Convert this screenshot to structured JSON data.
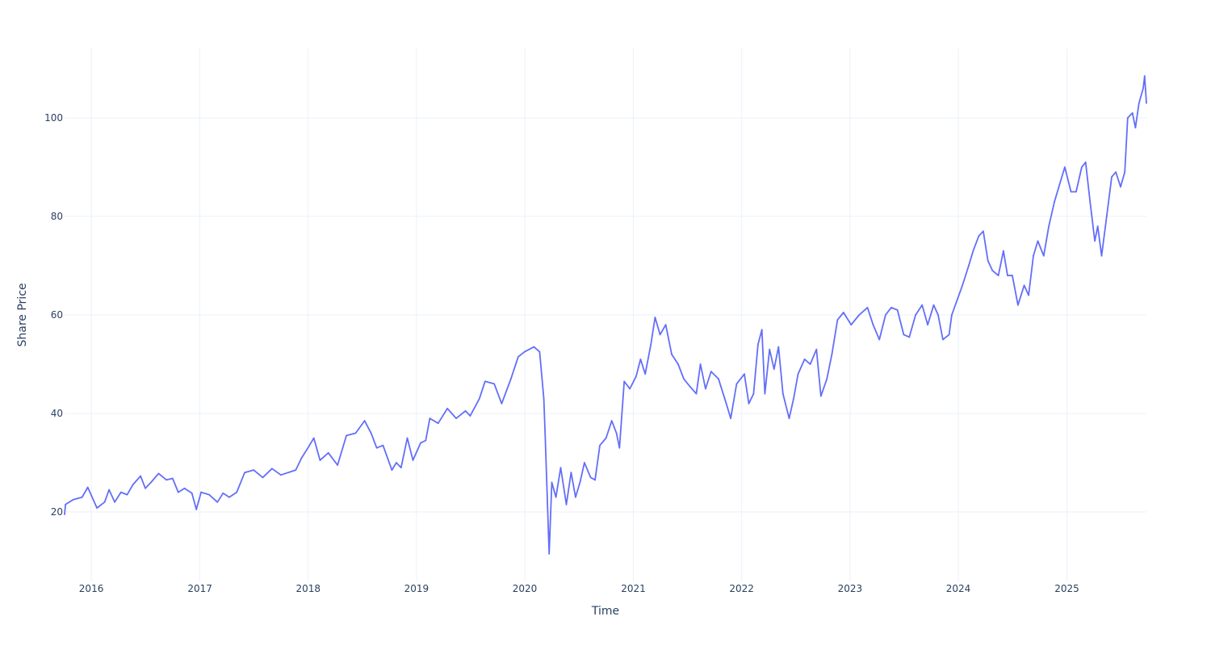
{
  "chart_data": {
    "type": "line",
    "title": "",
    "xlabel": "Time",
    "ylabel": "Share Price",
    "xlim": [
      "2015-10-03",
      "2025-09-26"
    ],
    "ylim": [
      5.9,
      114.1
    ],
    "grid": true,
    "legend": "none",
    "x_ticks": [
      "2016",
      "2017",
      "2018",
      "2019",
      "2020",
      "2021",
      "2022",
      "2023",
      "2024",
      "2025"
    ],
    "y_ticks": [
      "20",
      "40",
      "60",
      "80",
      "100"
    ],
    "colors": {
      "line": "#636efa",
      "grid": "#ebf0f8",
      "text": "#2a3f5f"
    },
    "series": [
      {
        "name": "Share Price",
        "points": [
          [
            "2015-10-03",
            19.5
          ],
          [
            "2015-10-06",
            21.5
          ],
          [
            "2015-11-01",
            22.5
          ],
          [
            "2015-12-01",
            23
          ],
          [
            "2015-12-20",
            25
          ],
          [
            "2016-01-20",
            20.8
          ],
          [
            "2016-02-15",
            22
          ],
          [
            "2016-03-01",
            24.5
          ],
          [
            "2016-03-20",
            22
          ],
          [
            "2016-04-10",
            24
          ],
          [
            "2016-05-01",
            23.5
          ],
          [
            "2016-05-20",
            25.5
          ],
          [
            "2016-06-15",
            27.3
          ],
          [
            "2016-07-01",
            24.8
          ],
          [
            "2016-07-20",
            26
          ],
          [
            "2016-08-15",
            27.8
          ],
          [
            "2016-09-10",
            26.5
          ],
          [
            "2016-10-01",
            26.8
          ],
          [
            "2016-10-20",
            24
          ],
          [
            "2016-11-10",
            24.8
          ],
          [
            "2016-12-05",
            23.8
          ],
          [
            "2016-12-20",
            20.5
          ],
          [
            "2017-01-05",
            24
          ],
          [
            "2017-02-01",
            23.5
          ],
          [
            "2017-03-01",
            22
          ],
          [
            "2017-03-20",
            23.8
          ],
          [
            "2017-04-10",
            23
          ],
          [
            "2017-05-05",
            24
          ],
          [
            "2017-06-01",
            28
          ],
          [
            "2017-07-01",
            28.5
          ],
          [
            "2017-08-01",
            27
          ],
          [
            "2017-09-01",
            28.8
          ],
          [
            "2017-10-01",
            27.5
          ],
          [
            "2017-11-20",
            28.5
          ],
          [
            "2017-12-10",
            31
          ],
          [
            "2017-12-31",
            33
          ],
          [
            "2018-01-20",
            35
          ],
          [
            "2018-02-10",
            30.5
          ],
          [
            "2018-03-10",
            32
          ],
          [
            "2018-04-10",
            29.5
          ],
          [
            "2018-05-10",
            35.5
          ],
          [
            "2018-06-10",
            36
          ],
          [
            "2018-07-10",
            38.5
          ],
          [
            "2018-08-01",
            36
          ],
          [
            "2018-08-20",
            33
          ],
          [
            "2018-09-10",
            33.5
          ],
          [
            "2018-10-10",
            28.5
          ],
          [
            "2018-10-25",
            30
          ],
          [
            "2018-11-10",
            29
          ],
          [
            "2018-12-01",
            35
          ],
          [
            "2018-12-20",
            30.5
          ],
          [
            "2019-01-15",
            34
          ],
          [
            "2019-02-01",
            34.5
          ],
          [
            "2019-02-15",
            39
          ],
          [
            "2019-03-15",
            38
          ],
          [
            "2019-04-15",
            41
          ],
          [
            "2019-05-15",
            39
          ],
          [
            "2019-06-15",
            40.5
          ],
          [
            "2019-07-01",
            39.5
          ],
          [
            "2019-08-01",
            43
          ],
          [
            "2019-08-20",
            46.5
          ],
          [
            "2019-09-20",
            46
          ],
          [
            "2019-10-15",
            42
          ],
          [
            "2019-11-15",
            47
          ],
          [
            "2019-12-10",
            51.5
          ],
          [
            "2019-12-31",
            52.5
          ],
          [
            "2020-02-01",
            53.5
          ],
          [
            "2020-02-20",
            52.5
          ],
          [
            "2020-03-05",
            43
          ],
          [
            "2020-03-10",
            35
          ],
          [
            "2020-03-23",
            11.5
          ],
          [
            "2020-04-01",
            26
          ],
          [
            "2020-04-15",
            23
          ],
          [
            "2020-05-01",
            29
          ],
          [
            "2020-05-20",
            21.5
          ],
          [
            "2020-06-05",
            28
          ],
          [
            "2020-06-20",
            23
          ],
          [
            "2020-07-05",
            26
          ],
          [
            "2020-07-20",
            30
          ],
          [
            "2020-08-10",
            27
          ],
          [
            "2020-08-25",
            26.5
          ],
          [
            "2020-09-10",
            33.5
          ],
          [
            "2020-10-01",
            35
          ],
          [
            "2020-10-20",
            38.5
          ],
          [
            "2020-11-05",
            36
          ],
          [
            "2020-11-15",
            33
          ],
          [
            "2020-12-01",
            46.5
          ],
          [
            "2020-12-20",
            45
          ],
          [
            "2021-01-10",
            47.5
          ],
          [
            "2021-01-25",
            51
          ],
          [
            "2021-02-10",
            48
          ],
          [
            "2021-03-01",
            54
          ],
          [
            "2021-03-15",
            59.5
          ],
          [
            "2021-04-01",
            56
          ],
          [
            "2021-04-20",
            58
          ],
          [
            "2021-05-10",
            52
          ],
          [
            "2021-06-01",
            50
          ],
          [
            "2021-06-20",
            47
          ],
          [
            "2021-07-10",
            45.5
          ],
          [
            "2021-08-01",
            44
          ],
          [
            "2021-08-15",
            50
          ],
          [
            "2021-09-01",
            45
          ],
          [
            "2021-09-20",
            48.5
          ],
          [
            "2021-10-15",
            47
          ],
          [
            "2021-11-10",
            42
          ],
          [
            "2021-11-25",
            39
          ],
          [
            "2021-12-15",
            46
          ],
          [
            "2022-01-10",
            48
          ],
          [
            "2022-01-25",
            42
          ],
          [
            "2022-02-10",
            44
          ],
          [
            "2022-02-25",
            54
          ],
          [
            "2022-03-10",
            57
          ],
          [
            "2022-03-20",
            44
          ],
          [
            "2022-04-05",
            53
          ],
          [
            "2022-04-20",
            49
          ],
          [
            "2022-05-05",
            53.5
          ],
          [
            "2022-05-20",
            44
          ],
          [
            "2022-06-10",
            39
          ],
          [
            "2022-06-25",
            43
          ],
          [
            "2022-07-10",
            48
          ],
          [
            "2022-08-01",
            51
          ],
          [
            "2022-08-20",
            50
          ],
          [
            "2022-09-10",
            53
          ],
          [
            "2022-09-25",
            43.5
          ],
          [
            "2022-10-15",
            47
          ],
          [
            "2022-11-01",
            52
          ],
          [
            "2022-11-20",
            59
          ],
          [
            "2022-12-10",
            60.5
          ],
          [
            "2023-01-05",
            58
          ],
          [
            "2023-02-01",
            60
          ],
          [
            "2023-03-01",
            61.5
          ],
          [
            "2023-03-20",
            58
          ],
          [
            "2023-04-10",
            55
          ],
          [
            "2023-05-01",
            60
          ],
          [
            "2023-05-20",
            61.5
          ],
          [
            "2023-06-10",
            61
          ],
          [
            "2023-07-01",
            56
          ],
          [
            "2023-07-20",
            55.5
          ],
          [
            "2023-08-10",
            60
          ],
          [
            "2023-09-01",
            62
          ],
          [
            "2023-09-20",
            58
          ],
          [
            "2023-10-10",
            62
          ],
          [
            "2023-10-25",
            60
          ],
          [
            "2023-11-10",
            55
          ],
          [
            "2023-12-01",
            56
          ],
          [
            "2023-12-10",
            60
          ],
          [
            "2024-01-15",
            66
          ],
          [
            "2024-02-05",
            70
          ],
          [
            "2024-02-20",
            73
          ],
          [
            "2024-03-10",
            76
          ],
          [
            "2024-03-25",
            77
          ],
          [
            "2024-04-10",
            71
          ],
          [
            "2024-04-25",
            69
          ],
          [
            "2024-05-15",
            68
          ],
          [
            "2024-06-01",
            73
          ],
          [
            "2024-06-15",
            68
          ],
          [
            "2024-07-01",
            68
          ],
          [
            "2024-07-20",
            62
          ],
          [
            "2024-08-10",
            66
          ],
          [
            "2024-08-25",
            64
          ],
          [
            "2024-09-10",
            72
          ],
          [
            "2024-09-25",
            75
          ],
          [
            "2024-10-15",
            72
          ],
          [
            "2024-11-01",
            78
          ],
          [
            "2024-11-20",
            83
          ],
          [
            "2024-12-10",
            87
          ],
          [
            "2024-12-25",
            90
          ],
          [
            "2025-01-15",
            85
          ],
          [
            "2025-02-01",
            85
          ],
          [
            "2025-02-20",
            90
          ],
          [
            "2025-03-05",
            91
          ],
          [
            "2025-03-20",
            83
          ],
          [
            "2025-04-05",
            75
          ],
          [
            "2025-04-15",
            78
          ],
          [
            "2025-04-28",
            72
          ],
          [
            "2025-05-15",
            80
          ],
          [
            "2025-06-01",
            88
          ],
          [
            "2025-06-15",
            89
          ],
          [
            "2025-07-01",
            86
          ],
          [
            "2025-07-15",
            89
          ],
          [
            "2025-07-25",
            100
          ],
          [
            "2025-08-10",
            101
          ],
          [
            "2025-08-20",
            98
          ],
          [
            "2025-09-01",
            103
          ],
          [
            "2025-09-15",
            106
          ],
          [
            "2025-09-20",
            108.5
          ],
          [
            "2025-09-26",
            103
          ]
        ]
      }
    ]
  }
}
